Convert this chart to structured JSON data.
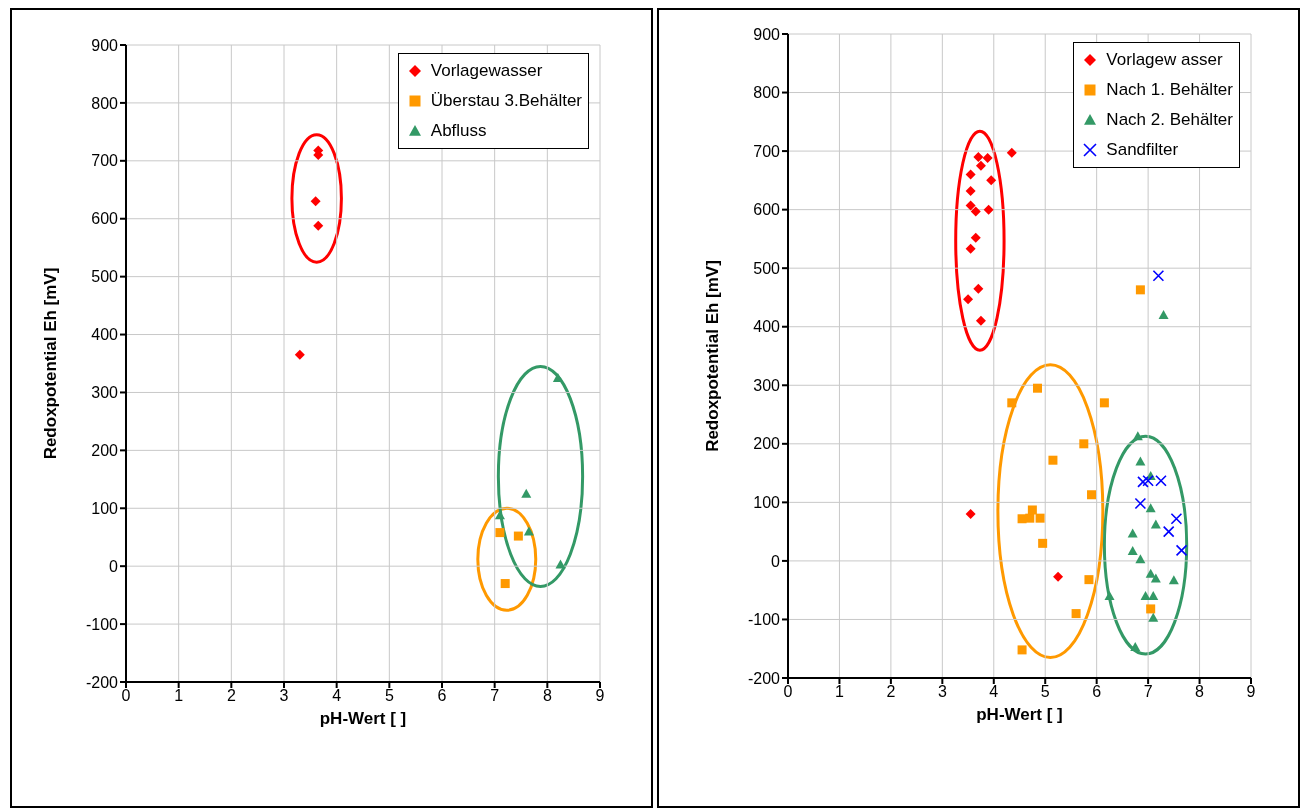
{
  "chart_data": [
    {
      "type": "scatter",
      "xlabel": "pH-Wert [ ]",
      "ylabel": "Redoxpotential Eh [mV]",
      "xlim": [
        0,
        9
      ],
      "xticks": [
        0,
        1,
        2,
        3,
        4,
        5,
        6,
        7,
        8,
        9
      ],
      "ylim": [
        -200,
        900
      ],
      "yticks": [
        -200,
        -100,
        0,
        100,
        200,
        300,
        400,
        500,
        600,
        700,
        800,
        900
      ],
      "grid": true,
      "legend": "top right",
      "series": [
        {
          "name": "Vorlagewasser",
          "color": "#ff0000",
          "marker": "diamond",
          "x": [
            3.65,
            3.65,
            3.6,
            3.65,
            3.3
          ],
          "values": [
            718,
            710,
            630,
            588,
            365
          ]
        },
        {
          "name": "Überstau 3.Behälter",
          "color": "#ff9900",
          "marker": "square",
          "x": [
            7.1,
            7.45,
            7.2
          ],
          "values": [
            58,
            52,
            -30
          ]
        },
        {
          "name": "Abfluss",
          "color": "#339966",
          "marker": "triangle",
          "x": [
            7.1,
            7.6,
            7.65,
            8.2,
            8.25
          ],
          "values": [
            88,
            125,
            60,
            325,
            3
          ]
        }
      ]
    },
    {
      "type": "scatter",
      "xlabel": "pH-Wert [ ]",
      "ylabel": "Redoxpotential Eh [mV]",
      "xlim": [
        0,
        9
      ],
      "xticks": [
        0,
        1,
        2,
        3,
        4,
        5,
        6,
        7,
        8,
        9
      ],
      "ylim": [
        -200,
        900
      ],
      "yticks": [
        -200,
        -100,
        0,
        100,
        200,
        300,
        400,
        500,
        600,
        700,
        800,
        900
      ],
      "grid": true,
      "legend": "top right",
      "series": [
        {
          "name": "Vorlagew asser",
          "color": "#ff0000",
          "marker": "diamond",
          "x": [
            3.7,
            3.88,
            3.75,
            4.35,
            3.55,
            3.55,
            3.95,
            3.55,
            3.65,
            3.9,
            3.65,
            3.55,
            3.7,
            3.5,
            3.75,
            3.55,
            5.25
          ],
          "values": [
            690,
            688,
            675,
            697,
            660,
            632,
            650,
            607,
            597,
            600,
            552,
            533,
            465,
            447,
            410,
            80,
            -27
          ]
        },
        {
          "name": "Nach 1. Behälter",
          "color": "#ff9900",
          "marker": "square",
          "x": [
            4.35,
            4.85,
            6.15,
            5.75,
            5.15,
            5.9,
            4.55,
            4.7,
            4.75,
            4.9,
            4.95,
            5.85,
            5.6,
            7.05,
            4.55,
            6.85
          ],
          "values": [
            270,
            295,
            270,
            200,
            172,
            113,
            72,
            73,
            87,
            73,
            30,
            -32,
            -90,
            -82,
            -152,
            463
          ]
        },
        {
          "name": "Nach 2. Behälter",
          "color": "#339966",
          "marker": "triangle",
          "x": [
            6.8,
            6.85,
            7.05,
            7.05,
            7.15,
            6.7,
            6.7,
            6.85,
            7.05,
            7.15,
            7.5,
            6.25,
            6.95,
            7.1,
            7.1,
            6.75,
            7.3
          ],
          "values": [
            213,
            170,
            145,
            90,
            62,
            47,
            17,
            3,
            -22,
            -30,
            -33,
            -60,
            -60,
            -60,
            -97,
            -147,
            420
          ]
        },
        {
          "name": "Sandfilter",
          "color": "#0000ff",
          "marker": "cross",
          "x": [
            7.2,
            6.9,
            7.0,
            7.25,
            6.85,
            7.55,
            7.4,
            7.65
          ],
          "values": [
            487,
            135,
            137,
            137,
            98,
            72,
            50,
            18
          ]
        }
      ]
    }
  ]
}
